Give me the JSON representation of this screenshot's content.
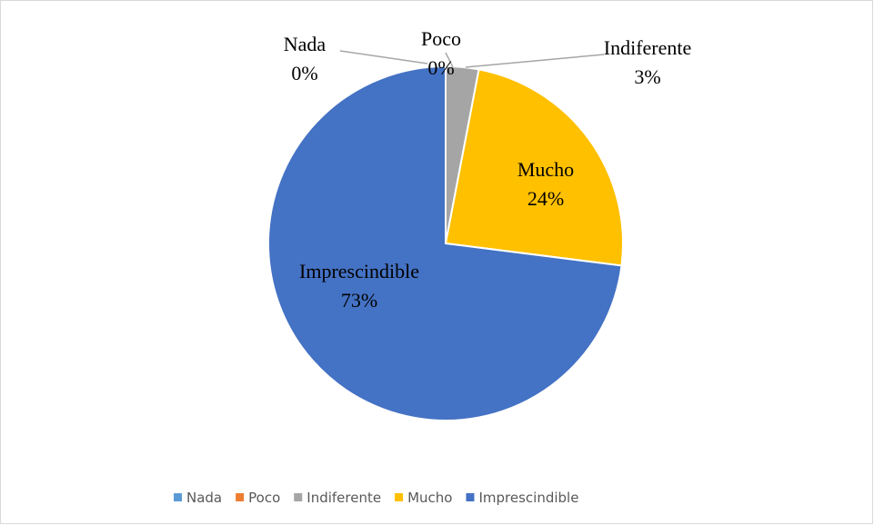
{
  "chart_data": {
    "type": "pie",
    "categories": [
      "Nada",
      "Poco",
      "Indiferente",
      "Mucho",
      "Imprescindible"
    ],
    "values": [
      0,
      0,
      3,
      24,
      73
    ],
    "value_labels": [
      "0%",
      "0%",
      "3%",
      "24%",
      "73%"
    ],
    "colors": [
      "#5b9bd5",
      "#ed7d31",
      "#a5a5a5",
      "#ffc000",
      "#4472c4"
    ],
    "legend": "bottom"
  }
}
